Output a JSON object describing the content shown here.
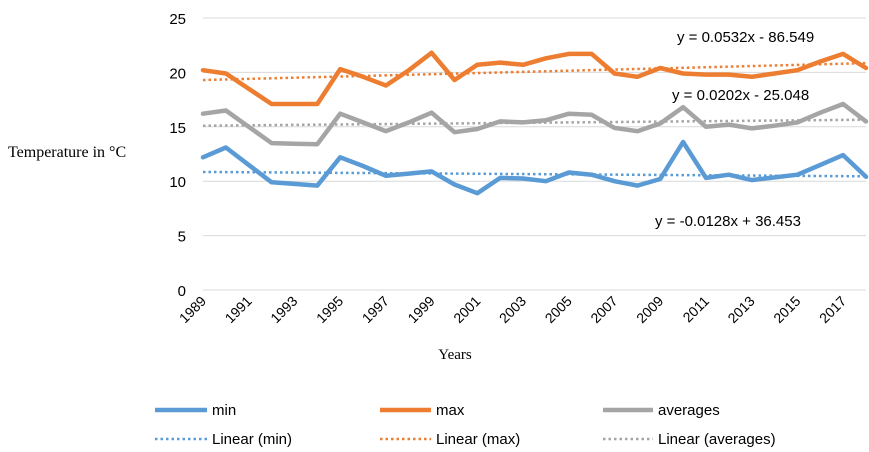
{
  "chart_data": {
    "type": "line",
    "title": "",
    "xlabel": "Years",
    "ylabel": "Temperature in °C",
    "ylim": [
      0,
      25
    ],
    "yticks": [
      0,
      5,
      10,
      15,
      20,
      25
    ],
    "grid": true,
    "legend_position": "bottom",
    "x": [
      1989,
      1990,
      1991,
      1992,
      1993,
      1994,
      1995,
      1996,
      1997,
      1998,
      1999,
      2000,
      2001,
      2002,
      2003,
      2004,
      2005,
      2006,
      2007,
      2008,
      2009,
      2010,
      2011,
      2012,
      2013,
      2014,
      2015,
      2016,
      2017,
      2018
    ],
    "x_tick_labels": [
      "1989",
      "1991",
      "1993",
      "1995",
      "1997",
      "1999",
      "2001",
      "2003",
      "2005",
      "2007",
      "2009",
      "2011",
      "2013",
      "2015",
      "2017"
    ],
    "series": [
      {
        "name": "min",
        "color": "#5B9BD5",
        "values": [
          12.2,
          13.1,
          11.5,
          9.9,
          9.75,
          9.6,
          12.2,
          11.4,
          10.5,
          10.7,
          10.9,
          9.7,
          8.9,
          10.3,
          10.25,
          10.0,
          10.8,
          10.6,
          10.0,
          9.6,
          10.2,
          13.6,
          10.3,
          10.6,
          10.1,
          10.35,
          10.6,
          11.5,
          12.4,
          10.4
        ]
      },
      {
        "name": "max",
        "color": "#ED7D31",
        "values": [
          20.2,
          19.9,
          18.5,
          17.1,
          17.1,
          17.1,
          20.3,
          19.6,
          18.8,
          20.2,
          21.8,
          19.3,
          20.7,
          20.9,
          20.7,
          21.3,
          21.7,
          21.7,
          19.9,
          19.6,
          20.4,
          19.9,
          19.8,
          19.8,
          19.6,
          19.9,
          20.2,
          21.0,
          21.7,
          20.4
        ]
      },
      {
        "name": "averages",
        "color": "#A5A5A5",
        "values": [
          16.2,
          16.5,
          15.0,
          13.5,
          13.45,
          13.4,
          16.2,
          15.4,
          14.6,
          15.4,
          16.3,
          14.5,
          14.8,
          15.5,
          15.4,
          15.6,
          16.2,
          16.1,
          14.9,
          14.6,
          15.3,
          16.8,
          15.0,
          15.2,
          14.85,
          15.1,
          15.4,
          16.3,
          17.1,
          15.5
        ]
      }
    ],
    "trendlines": [
      {
        "name": "Linear (min)",
        "color": "#5B9BD5",
        "start": 10.85,
        "end": 10.45,
        "equation": "y = -0.0128x + 36.453"
      },
      {
        "name": "Linear (max)",
        "color": "#ED7D31",
        "start": 19.3,
        "end": 20.85,
        "equation": "y = 0.0532x - 86.549"
      },
      {
        "name": "Linear (averages)",
        "color": "#A5A5A5",
        "start": 15.1,
        "end": 15.65,
        "equation": "y = 0.0202x - 25.048"
      }
    ]
  }
}
